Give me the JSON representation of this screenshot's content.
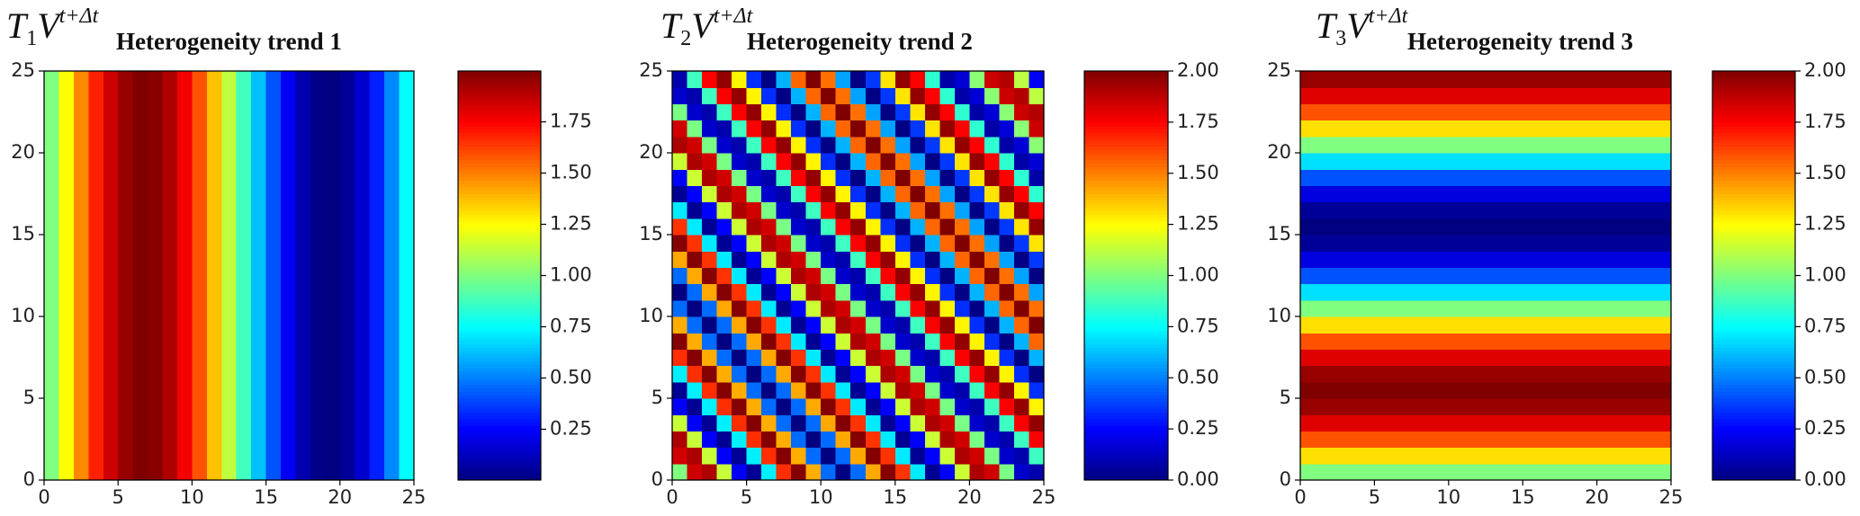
{
  "chart_data": [
    {
      "type": "heatmap",
      "orientation": "vertical",
      "colormap": "jet",
      "title_symbol": [
        "T",
        "1",
        "V",
        "t+Δt"
      ],
      "title": "Heterogeneity trend 1",
      "values": [
        1.0,
        1.249,
        1.482,
        1.685,
        1.844,
        1.951,
        1.998,
        1.982,
        1.905,
        1.771,
        1.588,
        1.368,
        1.125,
        0.875,
        0.632,
        0.412,
        0.229,
        0.095,
        0.018,
        0.002,
        0.049,
        0.156,
        0.315,
        0.518,
        0.751
      ],
      "xlim": [
        0,
        25
      ],
      "xticks": [
        0,
        5,
        10,
        15,
        20,
        25
      ],
      "ylim": [
        0,
        25
      ],
      "yticks": [
        0,
        5,
        10,
        15,
        20,
        25
      ],
      "clim": [
        0.002,
        1.998
      ],
      "cticks": [
        0.25,
        {
          "value": 0.5,
          "label": "0.50"
        },
        0.75,
        {
          "value": 1,
          "label": "1.00"
        },
        1.25,
        {
          "value": 1.5,
          "label": "1.50"
        },
        1.75
      ]
    },
    {
      "type": "heatmap",
      "colormap": "jet",
      "title_symbol": [
        "T",
        "2",
        "V",
        "t+Δt"
      ],
      "title": "Heterogeneity trend 2",
      "z": [
        [
          1,
          1.84,
          1.91,
          1.14,
          0.24,
          0.04,
          0.72,
          1.66,
          1.99,
          1.41,
          0.46,
          0,
          0.46,
          1.42,
          1.99,
          1.65,
          0.71,
          0.04,
          0.25,
          1.15,
          1.91,
          1.84,
          0.99,
          0.15,
          0.09
        ],
        [
          1.84,
          1.91,
          1.14,
          0.24,
          0.04,
          0.72,
          1.66,
          1.99,
          1.41,
          0.46,
          0,
          0.46,
          1.42,
          1.99,
          1.65,
          0.71,
          0.04,
          0.25,
          1.15,
          1.91,
          1.84,
          0.99,
          0.15,
          0.09,
          0.87
        ],
        [
          1.91,
          1.14,
          0.24,
          0.04,
          0.72,
          1.66,
          1.99,
          1.41,
          0.46,
          0,
          0.46,
          1.42,
          1.99,
          1.65,
          0.71,
          0.04,
          0.25,
          1.15,
          1.91,
          1.84,
          0.99,
          0.15,
          0.09,
          0.87,
          1.76
        ],
        [
          1.14,
          0.24,
          0.04,
          0.72,
          1.66,
          1.99,
          1.41,
          0.46,
          0,
          0.46,
          1.42,
          1.99,
          1.65,
          0.71,
          0.04,
          0.25,
          1.15,
          1.91,
          1.84,
          0.99,
          0.15,
          0.09,
          0.87,
          1.76,
          1.96
        ],
        [
          0.24,
          0.04,
          0.72,
          1.66,
          1.99,
          1.41,
          0.46,
          0,
          0.46,
          1.42,
          1.99,
          1.65,
          0.71,
          0.04,
          0.25,
          1.15,
          1.91,
          1.84,
          0.99,
          0.15,
          0.09,
          0.87,
          1.76,
          1.96,
          1.27
        ],
        [
          0.04,
          0.72,
          1.66,
          1.99,
          1.41,
          0.46,
          0,
          0.46,
          1.42,
          1.99,
          1.65,
          0.71,
          0.04,
          0.25,
          1.15,
          1.91,
          1.84,
          0.99,
          0.15,
          0.09,
          0.87,
          1.76,
          1.96,
          1.27,
          0.34
        ],
        [
          0.72,
          1.66,
          1.99,
          1.41,
          0.46,
          0,
          0.46,
          1.42,
          1.99,
          1.65,
          0.71,
          0.04,
          0.25,
          1.15,
          1.91,
          1.84,
          0.99,
          0.15,
          0.09,
          0.87,
          1.76,
          1.96,
          1.27,
          0.34,
          0.01
        ],
        [
          1.66,
          1.99,
          1.41,
          0.46,
          0,
          0.46,
          1.42,
          1.99,
          1.65,
          0.71,
          0.04,
          0.25,
          1.15,
          1.91,
          1.84,
          0.99,
          0.15,
          0.09,
          0.87,
          1.76,
          1.96,
          1.27,
          0.34,
          0.01,
          0.6
        ],
        [
          1.99,
          1.41,
          0.46,
          0,
          0.46,
          1.42,
          1.99,
          1.65,
          0.71,
          0.04,
          0.25,
          1.15,
          1.91,
          1.84,
          0.99,
          0.15,
          0.09,
          0.87,
          1.76,
          1.96,
          1.27,
          0.34,
          0.01,
          0.6,
          1.55
        ],
        [
          1.41,
          0.46,
          0,
          0.46,
          1.42,
          1.99,
          1.65,
          0.71,
          0.04,
          0.25,
          1.15,
          1.91,
          1.84,
          0.99,
          0.15,
          0.09,
          0.87,
          1.76,
          1.96,
          1.27,
          0.34,
          0.01,
          0.6,
          1.55,
          2
        ],
        [
          0.46,
          0,
          0.46,
          1.42,
          1.99,
          1.65,
          0.71,
          0.04,
          0.25,
          1.15,
          1.91,
          1.84,
          0.99,
          0.15,
          0.09,
          0.87,
          1.76,
          1.96,
          1.27,
          0.34,
          0.01,
          0.6,
          1.55,
          2,
          1.53
        ],
        [
          0,
          0.46,
          1.42,
          1.99,
          1.65,
          0.71,
          0.04,
          0.25,
          1.15,
          1.91,
          1.84,
          0.99,
          0.15,
          0.09,
          0.87,
          1.76,
          1.96,
          1.27,
          0.34,
          0.01,
          0.6,
          1.55,
          2,
          1.53,
          0.57
        ],
        [
          0.46,
          1.42,
          1.99,
          1.65,
          0.71,
          0.04,
          0.25,
          1.15,
          1.91,
          1.84,
          0.99,
          0.15,
          0.09,
          0.87,
          1.76,
          1.96,
          1.27,
          0.34,
          0.01,
          0.6,
          1.55,
          2,
          1.53,
          0.57,
          0.01
        ],
        [
          1.42,
          1.99,
          1.65,
          0.71,
          0.04,
          0.25,
          1.15,
          1.91,
          1.84,
          0.99,
          0.15,
          0.09,
          0.87,
          1.76,
          1.96,
          1.27,
          0.34,
          0.01,
          0.6,
          1.55,
          2,
          1.53,
          0.57,
          0.01,
          0.36
        ],
        [
          1.99,
          1.65,
          0.71,
          0.04,
          0.25,
          1.15,
          1.91,
          1.84,
          0.99,
          0.15,
          0.09,
          0.87,
          1.76,
          1.96,
          1.27,
          0.34,
          0.01,
          0.6,
          1.55,
          2,
          1.53,
          0.57,
          0.01,
          0.36,
          1.3
        ],
        [
          1.65,
          0.71,
          0.04,
          0.25,
          1.15,
          1.91,
          1.84,
          0.99,
          0.15,
          0.09,
          0.87,
          1.76,
          1.96,
          1.27,
          0.34,
          0.01,
          0.6,
          1.55,
          2,
          1.53,
          0.57,
          0.01,
          0.36,
          1.3,
          1.96
        ],
        [
          0.71,
          0.04,
          0.25,
          1.15,
          1.91,
          1.84,
          0.99,
          0.15,
          0.09,
          0.87,
          1.76,
          1.96,
          1.27,
          0.34,
          0.01,
          0.6,
          1.55,
          2,
          1.53,
          0.57,
          0.01,
          0.36,
          1.3,
          1.96,
          1.75
        ],
        [
          0.04,
          0.25,
          1.15,
          1.91,
          1.84,
          0.99,
          0.15,
          0.09,
          0.87,
          1.76,
          1.96,
          1.27,
          0.34,
          0.01,
          0.6,
          1.55,
          2,
          1.53,
          0.57,
          0.01,
          0.36,
          1.3,
          1.96,
          1.75,
          0.84
        ],
        [
          0.25,
          1.15,
          1.91,
          1.84,
          0.99,
          0.15,
          0.09,
          0.87,
          1.76,
          1.96,
          1.27,
          0.34,
          0.01,
          0.6,
          1.55,
          2,
          1.53,
          0.57,
          0.01,
          0.36,
          1.3,
          1.96,
          1.75,
          0.84,
          0.08
        ],
        [
          1.15,
          1.91,
          1.84,
          0.99,
          0.15,
          0.09,
          0.87,
          1.76,
          1.96,
          1.27,
          0.34,
          0.01,
          0.6,
          1.55,
          2,
          1.53,
          0.57,
          0.01,
          0.36,
          1.3,
          1.96,
          1.75,
          0.84,
          0.08,
          0.17
        ],
        [
          1.91,
          1.84,
          0.99,
          0.15,
          0.09,
          0.87,
          1.76,
          1.96,
          1.27,
          0.34,
          0.01,
          0.6,
          1.55,
          2,
          1.53,
          0.57,
          0.01,
          0.36,
          1.3,
          1.96,
          1.75,
          0.84,
          0.08,
          0.17,
          1.02
        ],
        [
          1.84,
          0.99,
          0.15,
          0.09,
          0.87,
          1.76,
          1.96,
          1.27,
          0.34,
          0.01,
          0.6,
          1.55,
          2,
          1.53,
          0.57,
          0.01,
          0.36,
          1.3,
          1.96,
          1.75,
          0.84,
          0.08,
          0.17,
          1.02,
          1.85
        ],
        [
          0.99,
          0.15,
          0.09,
          0.87,
          1.76,
          1.96,
          1.27,
          0.34,
          0.01,
          0.6,
          1.55,
          2,
          1.53,
          0.57,
          0.01,
          0.36,
          1.3,
          1.96,
          1.75,
          0.84,
          0.08,
          0.17,
          1.02,
          1.85,
          1.9
        ],
        [
          0.15,
          0.09,
          0.87,
          1.76,
          1.96,
          1.27,
          0.34,
          0.01,
          0.6,
          1.55,
          2,
          1.53,
          0.57,
          0.01,
          0.36,
          1.3,
          1.96,
          1.75,
          0.84,
          0.08,
          0.17,
          1.02,
          1.85,
          1.9,
          1.12
        ],
        [
          0.09,
          0.87,
          1.76,
          1.96,
          1.27,
          0.34,
          0.01,
          0.6,
          1.55,
          2,
          1.53,
          0.57,
          0.01,
          0.36,
          1.3,
          1.96,
          1.75,
          0.84,
          0.08,
          0.17,
          1.02,
          1.85,
          1.9,
          1.12,
          0.23
        ]
      ],
      "xlim": [
        0,
        25
      ],
      "xticks": [
        0,
        5,
        10,
        15,
        20,
        25
      ],
      "ylim": [
        0,
        25
      ],
      "yticks": [
        0,
        5,
        10,
        15,
        20,
        25
      ],
      "clim": [
        0,
        2
      ],
      "cticks": [
        {
          "value": 0,
          "label": "0.00"
        },
        0.25,
        {
          "value": 0.5,
          "label": "0.50"
        },
        0.75,
        {
          "value": 1,
          "label": "1.00"
        },
        1.25,
        {
          "value": 1.5,
          "label": "1.50"
        },
        1.75,
        {
          "value": 2,
          "label": "2.00"
        }
      ]
    },
    {
      "type": "heatmap",
      "orientation": "horizontal",
      "colormap": "jet",
      "title_symbol": [
        "T",
        "3",
        "V",
        "t+Δt"
      ],
      "title": "Heterogeneity trend 3",
      "values": [
        1.0,
        1.31,
        1.59,
        1.81,
        1.95,
        2.0,
        1.95,
        1.81,
        1.59,
        1.31,
        1.0,
        0.69,
        0.41,
        0.19,
        0.05,
        0.0,
        0.05,
        0.19,
        0.41,
        0.69,
        1.0,
        1.31,
        1.59,
        1.81,
        1.95
      ],
      "xlim": [
        0,
        25
      ],
      "xticks": [
        0,
        5,
        10,
        15,
        20,
        25
      ],
      "ylim": [
        0,
        25
      ],
      "yticks": [
        0,
        5,
        10,
        15,
        20,
        25
      ],
      "clim": [
        0,
        2
      ],
      "cticks": [
        {
          "value": 0,
          "label": "0.00"
        },
        0.25,
        {
          "value": 0.5,
          "label": "0.50"
        },
        0.75,
        {
          "value": 1,
          "label": "1.00"
        },
        1.25,
        {
          "value": 1.5,
          "label": "1.50"
        },
        1.75,
        {
          "value": 2,
          "label": "2.00"
        }
      ]
    }
  ]
}
